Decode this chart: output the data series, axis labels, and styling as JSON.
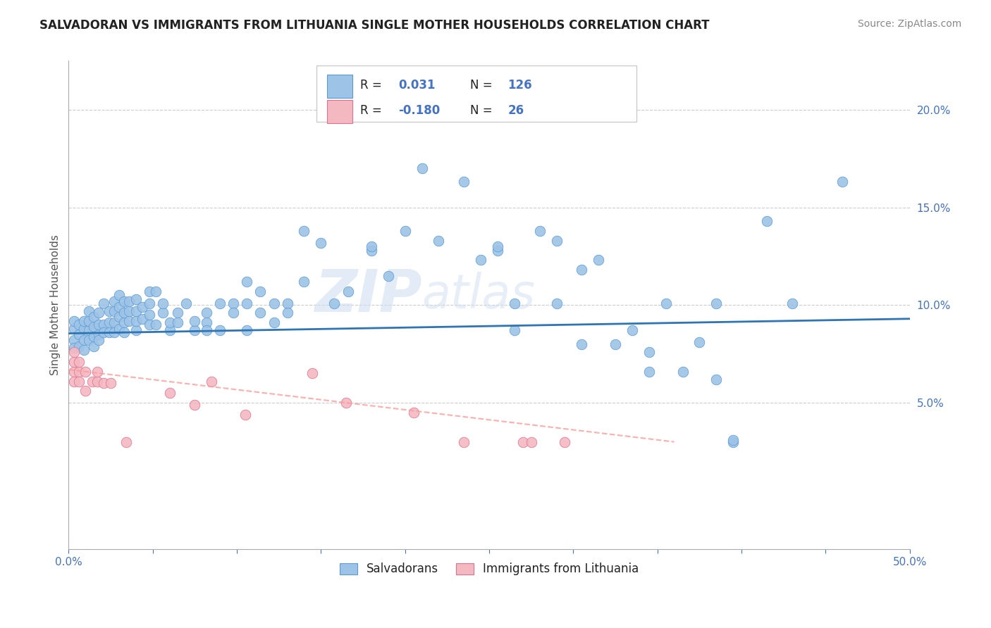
{
  "title": "SALVADORAN VS IMMIGRANTS FROM LITHUANIA SINGLE MOTHER HOUSEHOLDS CORRELATION CHART",
  "source": "Source: ZipAtlas.com",
  "ylabel": "Single Mother Households",
  "xlim": [
    0.0,
    0.5
  ],
  "ylim": [
    -0.025,
    0.225
  ],
  "xticks": [
    0.0,
    0.05,
    0.1,
    0.15,
    0.2,
    0.25,
    0.3,
    0.35,
    0.4,
    0.45,
    0.5
  ],
  "xtick_labels": [
    "0.0%",
    "",
    "",
    "",
    "",
    "",
    "",
    "",
    "",
    "",
    "50.0%"
  ],
  "yticks": [
    0.05,
    0.1,
    0.15,
    0.2
  ],
  "ytick_labels": [
    "5.0%",
    "10.0%",
    "15.0%",
    "20.0%"
  ],
  "blue_color": "#9DC3E6",
  "pink_color": "#F4B8C1",
  "blue_edge_color": "#5B9BD5",
  "pink_edge_color": "#E07090",
  "blue_line_color": "#2E75B6",
  "pink_line_color": "#FF9999",
  "watermark_zip": "ZIP",
  "watermark_atlas": "atlas",
  "blue_points": [
    [
      0.003,
      0.082
    ],
    [
      0.003,
      0.088
    ],
    [
      0.003,
      0.092
    ],
    [
      0.003,
      0.078
    ],
    [
      0.006,
      0.079
    ],
    [
      0.006,
      0.085
    ],
    [
      0.006,
      0.09
    ],
    [
      0.009,
      0.082
    ],
    [
      0.009,
      0.077
    ],
    [
      0.009,
      0.088
    ],
    [
      0.009,
      0.092
    ],
    [
      0.012,
      0.082
    ],
    [
      0.012,
      0.087
    ],
    [
      0.012,
      0.092
    ],
    [
      0.012,
      0.097
    ],
    [
      0.015,
      0.079
    ],
    [
      0.015,
      0.084
    ],
    [
      0.015,
      0.089
    ],
    [
      0.015,
      0.094
    ],
    [
      0.018,
      0.085
    ],
    [
      0.018,
      0.09
    ],
    [
      0.018,
      0.096
    ],
    [
      0.018,
      0.082
    ],
    [
      0.021,
      0.09
    ],
    [
      0.021,
      0.086
    ],
    [
      0.021,
      0.101
    ],
    [
      0.024,
      0.086
    ],
    [
      0.024,
      0.091
    ],
    [
      0.024,
      0.097
    ],
    [
      0.027,
      0.091
    ],
    [
      0.027,
      0.086
    ],
    [
      0.027,
      0.097
    ],
    [
      0.027,
      0.102
    ],
    [
      0.03,
      0.088
    ],
    [
      0.03,
      0.094
    ],
    [
      0.03,
      0.099
    ],
    [
      0.03,
      0.105
    ],
    [
      0.033,
      0.091
    ],
    [
      0.033,
      0.086
    ],
    [
      0.033,
      0.096
    ],
    [
      0.033,
      0.102
    ],
    [
      0.036,
      0.092
    ],
    [
      0.036,
      0.097
    ],
    [
      0.036,
      0.102
    ],
    [
      0.04,
      0.087
    ],
    [
      0.04,
      0.092
    ],
    [
      0.04,
      0.097
    ],
    [
      0.04,
      0.103
    ],
    [
      0.044,
      0.093
    ],
    [
      0.044,
      0.099
    ],
    [
      0.048,
      0.09
    ],
    [
      0.048,
      0.095
    ],
    [
      0.048,
      0.101
    ],
    [
      0.048,
      0.107
    ],
    [
      0.052,
      0.09
    ],
    [
      0.052,
      0.107
    ],
    [
      0.056,
      0.096
    ],
    [
      0.056,
      0.101
    ],
    [
      0.06,
      0.087
    ],
    [
      0.06,
      0.091
    ],
    [
      0.065,
      0.096
    ],
    [
      0.065,
      0.091
    ],
    [
      0.07,
      0.101
    ],
    [
      0.075,
      0.087
    ],
    [
      0.075,
      0.092
    ],
    [
      0.082,
      0.096
    ],
    [
      0.082,
      0.091
    ],
    [
      0.082,
      0.087
    ],
    [
      0.09,
      0.101
    ],
    [
      0.09,
      0.087
    ],
    [
      0.098,
      0.101
    ],
    [
      0.098,
      0.096
    ],
    [
      0.106,
      0.101
    ],
    [
      0.106,
      0.087
    ],
    [
      0.106,
      0.112
    ],
    [
      0.114,
      0.107
    ],
    [
      0.114,
      0.096
    ],
    [
      0.122,
      0.091
    ],
    [
      0.122,
      0.101
    ],
    [
      0.13,
      0.101
    ],
    [
      0.13,
      0.096
    ],
    [
      0.14,
      0.138
    ],
    [
      0.14,
      0.112
    ],
    [
      0.15,
      0.132
    ],
    [
      0.158,
      0.101
    ],
    [
      0.166,
      0.107
    ],
    [
      0.18,
      0.128
    ],
    [
      0.18,
      0.13
    ],
    [
      0.19,
      0.115
    ],
    [
      0.2,
      0.138
    ],
    [
      0.21,
      0.17
    ],
    [
      0.22,
      0.133
    ],
    [
      0.235,
      0.163
    ],
    [
      0.245,
      0.123
    ],
    [
      0.255,
      0.128
    ],
    [
      0.255,
      0.13
    ],
    [
      0.265,
      0.101
    ],
    [
      0.265,
      0.087
    ],
    [
      0.28,
      0.138
    ],
    [
      0.29,
      0.133
    ],
    [
      0.29,
      0.101
    ],
    [
      0.305,
      0.118
    ],
    [
      0.305,
      0.08
    ],
    [
      0.315,
      0.123
    ],
    [
      0.325,
      0.08
    ],
    [
      0.335,
      0.087
    ],
    [
      0.345,
      0.076
    ],
    [
      0.345,
      0.066
    ],
    [
      0.355,
      0.101
    ],
    [
      0.365,
      0.066
    ],
    [
      0.375,
      0.081
    ],
    [
      0.385,
      0.101
    ],
    [
      0.385,
      0.062
    ],
    [
      0.395,
      0.03
    ],
    [
      0.395,
      0.031
    ],
    [
      0.415,
      0.143
    ],
    [
      0.43,
      0.101
    ],
    [
      0.46,
      0.163
    ]
  ],
  "pink_points": [
    [
      0.003,
      0.066
    ],
    [
      0.003,
      0.071
    ],
    [
      0.003,
      0.076
    ],
    [
      0.003,
      0.061
    ],
    [
      0.006,
      0.066
    ],
    [
      0.006,
      0.071
    ],
    [
      0.006,
      0.061
    ],
    [
      0.01,
      0.066
    ],
    [
      0.01,
      0.056
    ],
    [
      0.014,
      0.061
    ],
    [
      0.017,
      0.061
    ],
    [
      0.017,
      0.066
    ],
    [
      0.021,
      0.06
    ],
    [
      0.025,
      0.06
    ],
    [
      0.034,
      0.03
    ],
    [
      0.06,
      0.055
    ],
    [
      0.075,
      0.049
    ],
    [
      0.085,
      0.061
    ],
    [
      0.105,
      0.044
    ],
    [
      0.145,
      0.065
    ],
    [
      0.165,
      0.05
    ],
    [
      0.205,
      0.045
    ],
    [
      0.235,
      0.03
    ],
    [
      0.27,
      0.03
    ],
    [
      0.275,
      0.03
    ],
    [
      0.295,
      0.03
    ]
  ],
  "blue_line_x": [
    0.0,
    0.5
  ],
  "blue_line_y": [
    0.0855,
    0.093
  ],
  "pink_line_x": [
    0.0,
    0.36
  ],
  "pink_line_y": [
    0.067,
    0.03
  ]
}
